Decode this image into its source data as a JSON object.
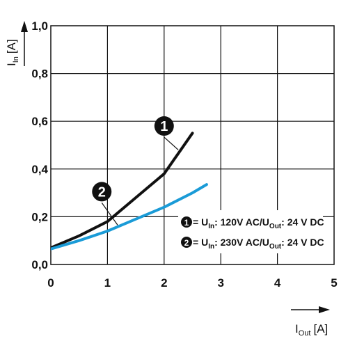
{
  "chart_data": {
    "type": "line",
    "x_axis": {
      "label_main": "I",
      "label_sub": "Out",
      "label_unit": "[A]",
      "range": [
        0,
        5
      ],
      "ticks": [
        "0",
        "1",
        "2",
        "3",
        "4",
        "5"
      ]
    },
    "y_axis": {
      "label_main": "I",
      "label_sub": "In",
      "label_unit": "[A]",
      "range": [
        0,
        1
      ],
      "ticks": [
        "0,0",
        "0,2",
        "0,4",
        "0,6",
        "0,8",
        "1,0"
      ]
    },
    "grid": true,
    "series": [
      {
        "marker": "1",
        "color": "#111111",
        "points": [
          [
            0,
            0.07
          ],
          [
            0.5,
            0.12
          ],
          [
            1,
            0.18
          ],
          [
            1.5,
            0.28
          ],
          [
            2,
            0.38
          ],
          [
            2.5,
            0.55
          ]
        ]
      },
      {
        "marker": "2",
        "color": "#1a9bd7",
        "points": [
          [
            0,
            0.065
          ],
          [
            0.5,
            0.1
          ],
          [
            1,
            0.14
          ],
          [
            1.5,
            0.19
          ],
          [
            2,
            0.24
          ],
          [
            2.5,
            0.3
          ],
          [
            2.75,
            0.335
          ]
        ]
      }
    ],
    "annotations": [
      {
        "marker": "1",
        "bubble": [
          2.0,
          0.58
        ],
        "target": [
          2.25,
          0.48
        ]
      },
      {
        "marker": "2",
        "bubble": [
          0.9,
          0.305
        ],
        "target": [
          1.18,
          0.165
        ]
      }
    ],
    "legend": {
      "placement": "bottom-right",
      "items": [
        {
          "marker": "1",
          "eq": "= U",
          "in_sub": "In",
          "text_mid": ": 120V AC/U",
          "out_sub": "Out",
          "text_end": ": 24 V DC"
        },
        {
          "marker": "2",
          "eq": "= U",
          "in_sub": "In",
          "text_mid": ": 230V AC/U",
          "out_sub": "Out",
          "text_end": ": 24 V DC"
        }
      ]
    }
  }
}
